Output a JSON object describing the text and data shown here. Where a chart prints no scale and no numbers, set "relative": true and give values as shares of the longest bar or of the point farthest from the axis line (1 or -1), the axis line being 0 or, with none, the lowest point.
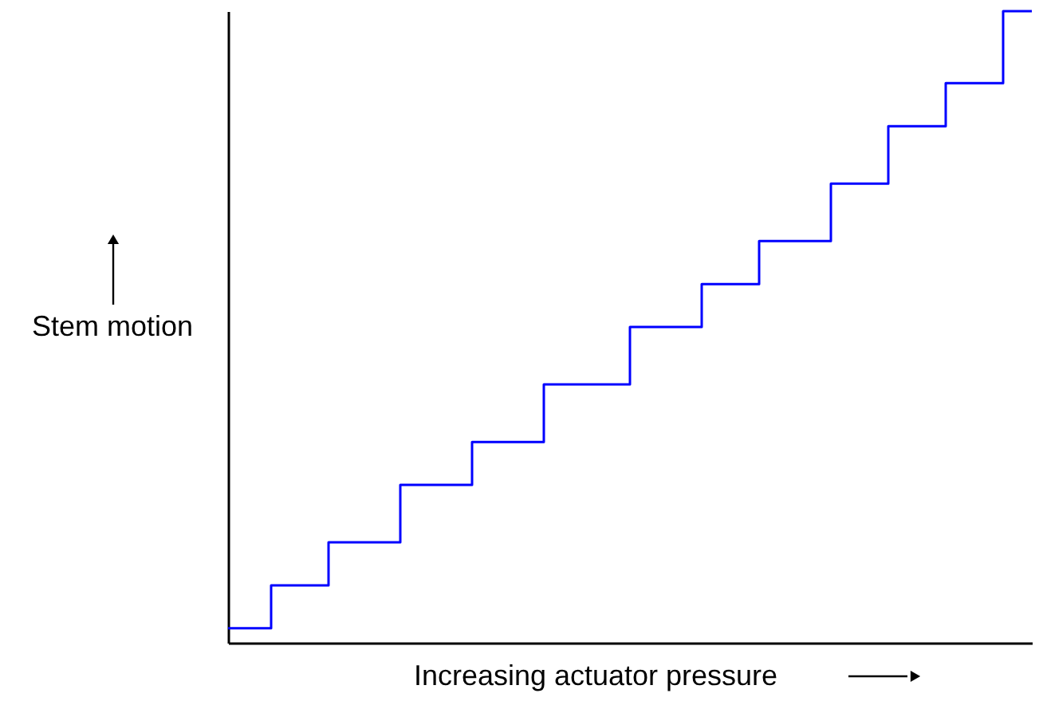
{
  "chart_data": {
    "type": "step",
    "relative": true,
    "xlabel": "Increasing actuator pressure",
    "ylabel": "Stem motion",
    "grid": false,
    "categories": [
      null,
      null,
      null,
      null,
      null,
      null,
      null,
      null,
      null,
      null,
      null,
      null,
      null,
      null,
      null,
      null,
      null,
      null,
      null,
      null,
      null,
      null,
      null,
      null,
      null,
      null,
      null,
      null,
      null,
      null,
      null,
      null,
      null,
      null,
      null,
      null,
      null,
      null,
      null,
      null,
      null,
      null,
      null,
      null,
      null,
      null,
      null,
      null,
      null,
      null,
      null,
      null,
      null,
      null,
      null,
      null,
      null
    ],
    "series": [
      {
        "color": "#0000ff",
        "values": [
          0.023,
          0.023,
          0.023,
          0.091,
          0.091,
          0.091,
          0.091,
          0.159,
          0.159,
          0.159,
          0.159,
          0.159,
          0.25,
          0.25,
          0.25,
          0.25,
          0.25,
          0.318,
          0.318,
          0.318,
          0.318,
          0.318,
          0.409,
          0.409,
          0.409,
          0.409,
          0.409,
          0.409,
          0.5,
          0.5,
          0.5,
          0.5,
          0.5,
          0.568,
          0.568,
          0.568,
          0.568,
          0.636,
          0.636,
          0.636,
          0.636,
          0.636,
          0.727,
          0.727,
          0.727,
          0.727,
          0.818,
          0.818,
          0.818,
          0.818,
          0.886,
          0.886,
          0.886,
          0.886,
          1,
          1,
          1
        ]
      }
    ]
  }
}
